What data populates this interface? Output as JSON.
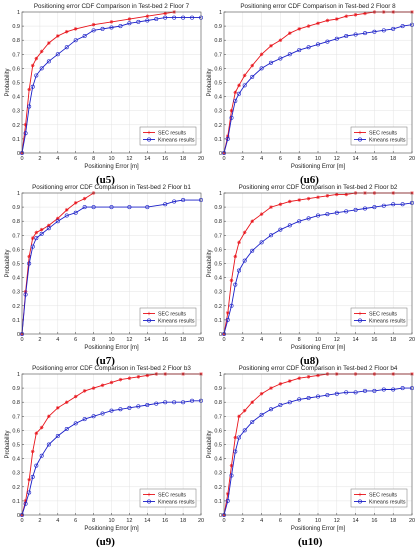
{
  "figure": {
    "captions": [
      "(u5)",
      "(u6)",
      "(u7)",
      "(u8)",
      "(u9)",
      "(u10)"
    ]
  },
  "chart_data": [
    {
      "type": "line",
      "title": "Positioning error CDF Comparison in Test-bed 2 Floor 7",
      "xlabel": "Positioning Error [m]",
      "ylabel": "Probability",
      "xlim": [
        0,
        20
      ],
      "ylim": [
        0,
        1
      ],
      "xticks": [
        "0",
        "2",
        "4",
        "6",
        "8",
        "10",
        "12",
        "14",
        "16",
        "18",
        "20"
      ],
      "yticks": [
        "0",
        "0.1",
        "0.2",
        "0.3",
        "0.4",
        "0.5",
        "0.6",
        "0.7",
        "0.8",
        "0.9",
        "1"
      ],
      "grid": true,
      "legend": "bottom-right",
      "legend_entries": [
        "SEC results",
        "Kmeans results"
      ],
      "series": [
        {
          "name": "SEC results",
          "color": "#e8141b",
          "marker": "star",
          "x": [
            0,
            0.4,
            0.8,
            1.2,
            1.6,
            2.2,
            3,
            4,
            5,
            6,
            8,
            10,
            12,
            14,
            16,
            17
          ],
          "y": [
            0,
            0.2,
            0.45,
            0.62,
            0.67,
            0.72,
            0.78,
            0.83,
            0.86,
            0.88,
            0.91,
            0.93,
            0.95,
            0.97,
            0.99,
            1.0
          ]
        },
        {
          "name": "Kmeans results",
          "color": "#1a1fc8",
          "marker": "circle",
          "x": [
            0,
            0.4,
            0.8,
            1.2,
            1.6,
            2.2,
            3,
            4,
            5,
            6,
            7,
            8,
            9,
            10,
            11,
            12,
            13,
            14,
            15,
            16,
            17,
            18,
            19,
            20
          ],
          "y": [
            0,
            0.14,
            0.33,
            0.47,
            0.55,
            0.6,
            0.65,
            0.7,
            0.75,
            0.8,
            0.83,
            0.87,
            0.88,
            0.89,
            0.9,
            0.92,
            0.93,
            0.94,
            0.95,
            0.96,
            0.96,
            0.96,
            0.96,
            0.96
          ]
        }
      ]
    },
    {
      "type": "line",
      "title": "Positioning error CDF Comparison in Test-bed 2 Floor 8",
      "xlabel": "Positioning Error [m]",
      "ylabel": "Probability",
      "xlim": [
        0,
        20
      ],
      "ylim": [
        0,
        1
      ],
      "xticks": [
        "0",
        "2",
        "4",
        "6",
        "8",
        "10",
        "12",
        "14",
        "16",
        "18",
        "20"
      ],
      "yticks": [
        "0",
        "0.1",
        "0.2",
        "0.3",
        "0.4",
        "0.5",
        "0.6",
        "0.7",
        "0.8",
        "0.9",
        "1"
      ],
      "grid": true,
      "legend": "bottom-right",
      "legend_entries": [
        "SEC results",
        "Kmeans results"
      ],
      "series": [
        {
          "name": "SEC results",
          "color": "#e8141b",
          "marker": "star",
          "x": [
            0,
            0.4,
            0.8,
            1.2,
            1.6,
            2.2,
            3,
            4,
            5,
            6,
            7,
            8,
            9,
            10,
            11,
            12,
            13,
            14,
            15,
            16,
            17,
            18,
            20
          ],
          "y": [
            0,
            0.12,
            0.3,
            0.43,
            0.48,
            0.55,
            0.62,
            0.7,
            0.76,
            0.8,
            0.85,
            0.88,
            0.9,
            0.92,
            0.94,
            0.95,
            0.97,
            0.98,
            0.99,
            1.0,
            1.0,
            1.0,
            1.0
          ]
        },
        {
          "name": "Kmeans results",
          "color": "#1a1fc8",
          "marker": "circle",
          "x": [
            0,
            0.4,
            0.8,
            1.2,
            1.6,
            2.2,
            3,
            4,
            5,
            6,
            7,
            8,
            9,
            10,
            11,
            12,
            13,
            14,
            15,
            16,
            17,
            18,
            19,
            20
          ],
          "y": [
            0,
            0.1,
            0.25,
            0.37,
            0.42,
            0.48,
            0.54,
            0.6,
            0.64,
            0.67,
            0.7,
            0.73,
            0.75,
            0.77,
            0.79,
            0.81,
            0.83,
            0.84,
            0.85,
            0.86,
            0.87,
            0.88,
            0.9,
            0.91
          ]
        }
      ]
    },
    {
      "type": "line",
      "title": "Positioning error CDF Comparison in Test-bed 2 Floor b1",
      "xlabel": "Positioning Error [m]",
      "ylabel": "Probability",
      "xlim": [
        0,
        20
      ],
      "ylim": [
        0,
        1
      ],
      "xticks": [
        "0",
        "2",
        "4",
        "6",
        "8",
        "10",
        "12",
        "14",
        "16",
        "18",
        "20"
      ],
      "yticks": [
        "0",
        "0.1",
        "0.2",
        "0.3",
        "0.4",
        "0.5",
        "0.6",
        "0.7",
        "0.8",
        "0.9",
        "1"
      ],
      "grid": true,
      "legend": "bottom-right",
      "legend_entries": [
        "SEC results",
        "Kmeans results"
      ],
      "series": [
        {
          "name": "SEC results",
          "color": "#e8141b",
          "marker": "star",
          "x": [
            0,
            0.4,
            0.8,
            1.2,
            1.6,
            2.2,
            3,
            4,
            5,
            6,
            7,
            8
          ],
          "y": [
            0,
            0.3,
            0.55,
            0.68,
            0.72,
            0.74,
            0.77,
            0.82,
            0.88,
            0.93,
            0.96,
            1.0
          ]
        },
        {
          "name": "Kmeans results",
          "color": "#1a1fc8",
          "marker": "circle",
          "x": [
            0,
            0.4,
            0.8,
            1.2,
            1.6,
            2.2,
            3,
            4,
            5,
            6,
            7,
            8,
            10,
            12,
            14,
            16,
            17,
            18,
            20
          ],
          "y": [
            0,
            0.28,
            0.5,
            0.62,
            0.68,
            0.71,
            0.75,
            0.8,
            0.84,
            0.86,
            0.9,
            0.9,
            0.9,
            0.9,
            0.9,
            0.92,
            0.94,
            0.95,
            0.95
          ]
        }
      ]
    },
    {
      "type": "line",
      "title": "Positioning error CDF Comparison in Test-bed 2 Floor b2",
      "xlabel": "Positioning Error [m]",
      "ylabel": "Probability",
      "xlim": [
        0,
        20
      ],
      "ylim": [
        0,
        1
      ],
      "xticks": [
        "0",
        "2",
        "4",
        "6",
        "8",
        "10",
        "12",
        "14",
        "16",
        "18",
        "20"
      ],
      "yticks": [
        "0",
        "0.1",
        "0.2",
        "0.3",
        "0.4",
        "0.5",
        "0.6",
        "0.7",
        "0.8",
        "0.9",
        "1"
      ],
      "grid": true,
      "legend": "bottom-right",
      "legend_entries": [
        "SEC results",
        "Kmeans results"
      ],
      "series": [
        {
          "name": "SEC results",
          "color": "#e8141b",
          "marker": "star",
          "x": [
            0,
            0.4,
            0.8,
            1.2,
            1.6,
            2.2,
            3,
            4,
            5,
            6,
            7,
            8,
            9,
            10,
            11,
            12,
            13,
            14,
            15,
            16,
            18,
            20
          ],
          "y": [
            0,
            0.15,
            0.38,
            0.55,
            0.65,
            0.72,
            0.8,
            0.85,
            0.9,
            0.92,
            0.94,
            0.95,
            0.96,
            0.97,
            0.98,
            0.99,
            0.99,
            1.0,
            1.0,
            1.0,
            1.0,
            1.0
          ]
        },
        {
          "name": "Kmeans results",
          "color": "#1a1fc8",
          "marker": "circle",
          "x": [
            0,
            0.4,
            0.8,
            1.2,
            1.6,
            2.2,
            3,
            4,
            5,
            6,
            7,
            8,
            9,
            10,
            11,
            12,
            13,
            14,
            15,
            16,
            17,
            18,
            19,
            20
          ],
          "y": [
            0,
            0.1,
            0.2,
            0.35,
            0.45,
            0.52,
            0.59,
            0.65,
            0.7,
            0.74,
            0.77,
            0.8,
            0.82,
            0.84,
            0.85,
            0.86,
            0.87,
            0.88,
            0.89,
            0.9,
            0.91,
            0.92,
            0.92,
            0.93
          ]
        }
      ]
    },
    {
      "type": "line",
      "title": "Positioning error CDF Comparison in Test-bed 2 Floor b3",
      "xlabel": "Positioning Error [m]",
      "ylabel": "Probability",
      "xlim": [
        0,
        20
      ],
      "ylim": [
        0,
        1
      ],
      "xticks": [
        "0",
        "2",
        "4",
        "6",
        "8",
        "10",
        "12",
        "14",
        "16",
        "18",
        "20"
      ],
      "yticks": [
        "0",
        "0.1",
        "0.2",
        "0.3",
        "0.4",
        "0.5",
        "0.6",
        "0.7",
        "0.8",
        "0.9",
        "1"
      ],
      "grid": true,
      "legend": "bottom-right",
      "legend_entries": [
        "SEC results",
        "Kmeans results"
      ],
      "series": [
        {
          "name": "SEC results",
          "color": "#e8141b",
          "marker": "star",
          "x": [
            0,
            0.4,
            0.8,
            1.2,
            1.6,
            2.2,
            3,
            4,
            5,
            6,
            7,
            8,
            9,
            10,
            11,
            12,
            13,
            14,
            15,
            16,
            18,
            20
          ],
          "y": [
            0,
            0.1,
            0.25,
            0.45,
            0.58,
            0.62,
            0.7,
            0.76,
            0.8,
            0.84,
            0.88,
            0.9,
            0.92,
            0.94,
            0.96,
            0.97,
            0.98,
            0.99,
            1.0,
            1.0,
            1.0,
            1.0
          ]
        },
        {
          "name": "Kmeans results",
          "color": "#1a1fc8",
          "marker": "circle",
          "x": [
            0,
            0.4,
            0.8,
            1.2,
            1.6,
            2.2,
            3,
            4,
            5,
            6,
            7,
            8,
            9,
            10,
            11,
            12,
            13,
            14,
            15,
            16,
            17,
            18,
            19,
            20
          ],
          "y": [
            0,
            0.08,
            0.16,
            0.27,
            0.35,
            0.42,
            0.5,
            0.56,
            0.61,
            0.65,
            0.68,
            0.7,
            0.72,
            0.74,
            0.75,
            0.76,
            0.77,
            0.78,
            0.79,
            0.8,
            0.8,
            0.8,
            0.81,
            0.81
          ]
        }
      ]
    },
    {
      "type": "line",
      "title": "Positioning error CDF Comparison in Test-bed 2 Floor b4",
      "xlabel": "Positioning Error [m]",
      "ylabel": "Probability",
      "xlim": [
        0,
        20
      ],
      "ylim": [
        0,
        1
      ],
      "xticks": [
        "0",
        "2",
        "4",
        "6",
        "8",
        "10",
        "12",
        "14",
        "16",
        "18",
        "20"
      ],
      "yticks": [
        "0",
        "0.1",
        "0.2",
        "0.3",
        "0.4",
        "0.5",
        "0.6",
        "0.7",
        "0.8",
        "0.9",
        "1"
      ],
      "grid": true,
      "legend": "bottom-right",
      "legend_entries": [
        "SEC results",
        "Kmeans results"
      ],
      "series": [
        {
          "name": "SEC results",
          "color": "#e8141b",
          "marker": "star",
          "x": [
            0,
            0.4,
            0.8,
            1.2,
            1.6,
            2.2,
            3,
            4,
            5,
            6,
            7,
            8,
            9,
            10,
            11,
            12,
            14,
            16,
            18,
            20
          ],
          "y": [
            0,
            0.15,
            0.35,
            0.55,
            0.7,
            0.74,
            0.8,
            0.86,
            0.9,
            0.93,
            0.95,
            0.97,
            0.98,
            0.99,
            1.0,
            1.0,
            1.0,
            1.0,
            1.0,
            1.0
          ]
        },
        {
          "name": "Kmeans results",
          "color": "#1a1fc8",
          "marker": "circle",
          "x": [
            0,
            0.4,
            0.8,
            1.2,
            1.6,
            2.2,
            3,
            4,
            5,
            6,
            7,
            8,
            9,
            10,
            11,
            12,
            13,
            14,
            15,
            16,
            17,
            18,
            19,
            20
          ],
          "y": [
            0,
            0.1,
            0.28,
            0.45,
            0.55,
            0.6,
            0.66,
            0.71,
            0.75,
            0.78,
            0.8,
            0.82,
            0.83,
            0.84,
            0.85,
            0.86,
            0.87,
            0.87,
            0.88,
            0.88,
            0.89,
            0.89,
            0.9,
            0.9
          ]
        }
      ]
    }
  ]
}
